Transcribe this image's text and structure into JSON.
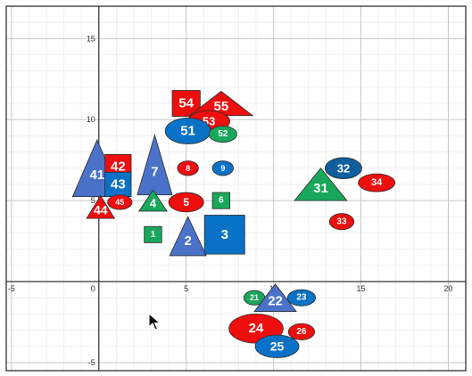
{
  "chart_data": {
    "type": "scatter",
    "title": "",
    "xlabel": "",
    "ylabel": "",
    "xlim": [
      -5.3,
      21.0
    ],
    "ylim": [
      -5.5,
      17.0
    ],
    "grid": true,
    "x_ticks": [
      "-5",
      "0",
      "5",
      "10",
      "15",
      "20"
    ],
    "y_ticks": [
      "15",
      "10",
      "5",
      "-5"
    ],
    "origin_label": "0",
    "colors": {
      "red": "#ee0e0e",
      "blue": "#0a72c6",
      "lightblue": "#4a72c8",
      "green": "#19a75b",
      "darkblue": "#0f5f9e"
    },
    "points": [
      {
        "label": "54",
        "shape": "square",
        "color": "red",
        "x": 5.0,
        "y": 11.0,
        "w": 1.6,
        "h": 1.6
      },
      {
        "label": "55",
        "shape": "triangle",
        "color": "red",
        "x": 7.0,
        "y": 11.0,
        "w": 3.6,
        "h": 1.5
      },
      {
        "label": "53",
        "shape": "ellipse",
        "color": "red",
        "x": 6.3,
        "y": 9.9,
        "w": 2.4,
        "h": 1.3
      },
      {
        "label": "51",
        "shape": "ellipse",
        "color": "blue",
        "x": 5.1,
        "y": 9.3,
        "w": 2.6,
        "h": 1.6
      },
      {
        "label": "52",
        "shape": "ellipse",
        "color": "green",
        "x": 7.1,
        "y": 9.1,
        "w": 1.6,
        "h": 1.0
      },
      {
        "label": "41",
        "shape": "triangle",
        "color": "lightblue",
        "x": -0.1,
        "y": 7.0,
        "w": 2.8,
        "h": 3.5
      },
      {
        "label": "42",
        "shape": "square",
        "color": "red",
        "x": 1.1,
        "y": 7.1,
        "w": 1.5,
        "h": 1.5
      },
      {
        "label": "43",
        "shape": "square",
        "color": "blue",
        "x": 1.1,
        "y": 6.0,
        "w": 1.5,
        "h": 1.5
      },
      {
        "label": "7",
        "shape": "triangle",
        "color": "lightblue",
        "x": 3.2,
        "y": 7.2,
        "w": 2.0,
        "h": 3.7
      },
      {
        "label": "8",
        "shape": "ellipse",
        "color": "red",
        "x": 5.1,
        "y": 7.0,
        "w": 1.2,
        "h": 0.9
      },
      {
        "label": "9",
        "shape": "ellipse",
        "color": "blue",
        "x": 7.1,
        "y": 7.0,
        "w": 1.2,
        "h": 0.9
      },
      {
        "label": "4",
        "shape": "triangle",
        "color": "green",
        "x": 3.1,
        "y": 5.0,
        "w": 1.6,
        "h": 1.3
      },
      {
        "label": "5",
        "shape": "ellipse",
        "color": "red",
        "x": 5.0,
        "y": 4.9,
        "w": 2.0,
        "h": 1.2
      },
      {
        "label": "6",
        "shape": "square",
        "color": "green",
        "x": 7.0,
        "y": 5.0,
        "w": 1.0,
        "h": 1.0
      },
      {
        "label": "45",
        "shape": "ellipse",
        "color": "red",
        "x": 1.2,
        "y": 4.9,
        "w": 1.4,
        "h": 0.9
      },
      {
        "label": "44",
        "shape": "triangle",
        "color": "red",
        "x": 0.1,
        "y": 4.6,
        "w": 1.6,
        "h": 1.4
      },
      {
        "label": "1",
        "shape": "square",
        "color": "green",
        "x": 3.1,
        "y": 2.9,
        "w": 1.0,
        "h": 1.0
      },
      {
        "label": "2",
        "shape": "triangle",
        "color": "lightblue",
        "x": 5.1,
        "y": 2.8,
        "w": 2.1,
        "h": 2.4
      },
      {
        "label": "3",
        "shape": "square",
        "color": "blue",
        "x": 7.2,
        "y": 2.9,
        "w": 2.3,
        "h": 2.4
      },
      {
        "label": "32",
        "shape": "ellipse",
        "color": "darkblue",
        "x": 14.0,
        "y": 7.0,
        "w": 2.1,
        "h": 1.3
      },
      {
        "label": "34",
        "shape": "ellipse",
        "color": "red",
        "x": 15.9,
        "y": 6.1,
        "w": 2.1,
        "h": 1.1
      },
      {
        "label": "31",
        "shape": "triangle",
        "color": "green",
        "x": 12.7,
        "y": 6.0,
        "w": 3.0,
        "h": 2.0
      },
      {
        "label": "33",
        "shape": "ellipse",
        "color": "red",
        "x": 13.9,
        "y": 3.7,
        "w": 1.4,
        "h": 1.0
      },
      {
        "label": "21",
        "shape": "ellipse",
        "color": "green",
        "x": 8.9,
        "y": -1.0,
        "w": 1.2,
        "h": 0.9
      },
      {
        "label": "22",
        "shape": "triangle",
        "color": "lightblue",
        "x": 10.1,
        "y": -1.0,
        "w": 2.4,
        "h": 1.7
      },
      {
        "label": "23",
        "shape": "ellipse",
        "color": "blue",
        "x": 11.6,
        "y": -1.0,
        "w": 1.6,
        "h": 1.0
      },
      {
        "label": "24",
        "shape": "ellipse",
        "color": "red",
        "x": 9.0,
        "y": -2.9,
        "w": 3.1,
        "h": 1.8
      },
      {
        "label": "26",
        "shape": "ellipse",
        "color": "red",
        "x": 11.6,
        "y": -3.1,
        "w": 1.5,
        "h": 1.0
      },
      {
        "label": "25",
        "shape": "ellipse",
        "color": "blue",
        "x": 10.2,
        "y": -4.0,
        "w": 2.5,
        "h": 1.4
      }
    ]
  }
}
